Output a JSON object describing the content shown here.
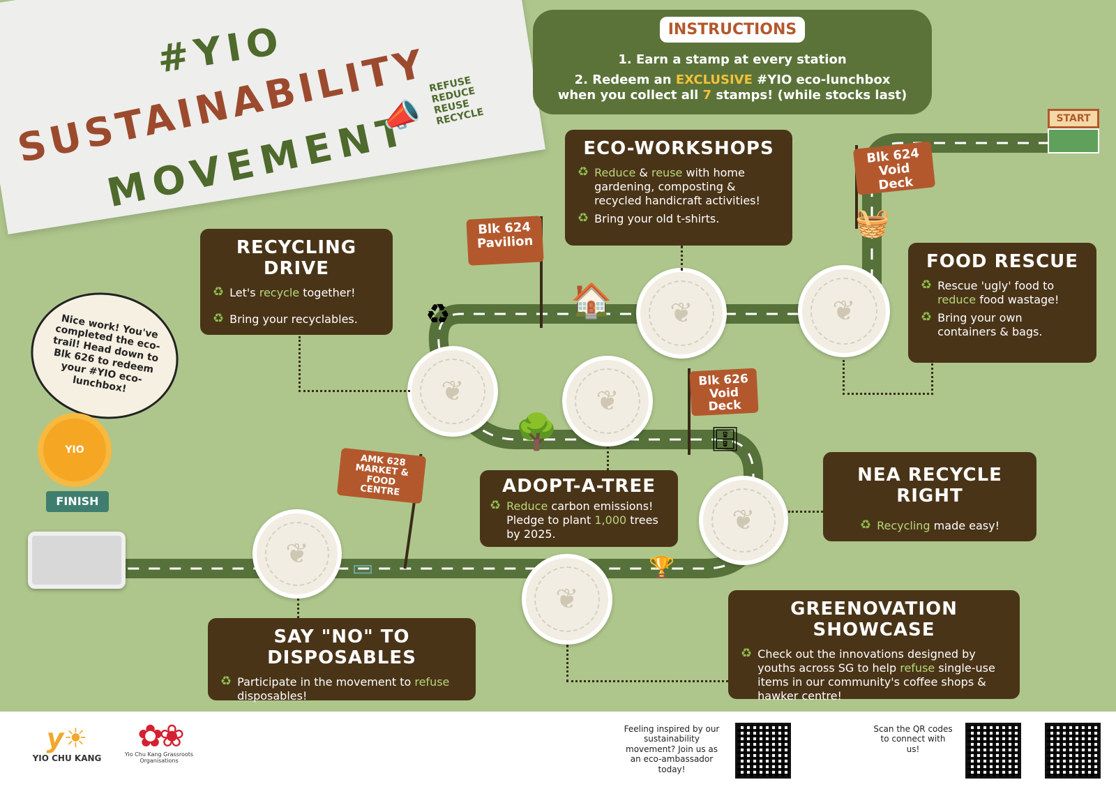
{
  "title": {
    "line1": "#YIO",
    "line2": "SUSTAINABILITY",
    "line3": "MOVEMENT",
    "rrr": [
      "REFUSE",
      "REDUCE",
      "REUSE",
      "RECYCLE"
    ]
  },
  "instructions": {
    "heading": "INSTRUCTIONS",
    "step1": "1. Earn a stamp at every station",
    "step2_a": "2. Redeem an ",
    "step2_b": "EXCLUSIVE",
    "step2_c": " #YIO eco-lunchbox",
    "step2_d": "when you collect all ",
    "step2_e": "7",
    "step2_f": " stamps! (while stocks last)"
  },
  "stations": {
    "eco_workshops": {
      "heading": "ECO-WORKSHOPS",
      "l1a": "Reduce",
      "l1b": " & ",
      "l1c": "reuse",
      "l1d": " with home gardening, composting & recycled handicraft activities!",
      "l2": "Bring your old t-shirts."
    },
    "recycling_drive": {
      "heading": "RECYCLING DRIVE",
      "l1a": "Let's ",
      "l1b": "recycle",
      "l1c": " together!",
      "l2": "Bring your recyclables."
    },
    "food_rescue": {
      "heading": "FOOD RESCUE",
      "l1a": "Rescue 'ugly' food to ",
      "l1b": "reduce",
      "l1c": " food wastage!",
      "l2": "Bring your own containers & bags."
    },
    "adopt_a_tree": {
      "heading": "ADOPT-A-TREE",
      "l1a": "Reduce",
      "l1b": " carbon emissions! Pledge to plant ",
      "l1c": "1,000",
      "l1d": " trees by 2025."
    },
    "nea": {
      "heading": "NEA RECYCLE RIGHT",
      "l1a": "Recycling",
      "l1b": " made easy!"
    },
    "disposables": {
      "heading": "SAY \"NO\" TO DISPOSABLES",
      "l1a": "Participate in the movement to ",
      "l1b": "refuse",
      "l1c": " disposables!"
    },
    "greenovation": {
      "heading": "GREENOVATION SHOWCASE",
      "l1a": "Check out the innovations designed by youths across SG to help ",
      "l1b": "refuse",
      "l1c": " single-use items in our community's coffee shops & hawker centre!"
    }
  },
  "flags": {
    "pavilion": "Blk 624 Pavilion",
    "void624": "Blk 624 Void Deck",
    "void626": "Blk 626 Void Deck",
    "amk628": "AMK 628 MARKET & FOOD CENTRE"
  },
  "bubble": "Nice work! You've completed the eco-trail! Head down to Blk 626 to redeem your #YIO eco-lunchbox!",
  "mascot_label": "YIO",
  "finish": "FINISH",
  "start": "START",
  "footer": {
    "yck": "YIO CHU KANG",
    "gro": "Yio Chu Kang Grassroots Organisations",
    "inspire": "Feeling inspired by our sustainability movement? Join us as an eco-ambassador today!",
    "scan": "Scan the QR codes to connect with us!"
  },
  "colors": {
    "background": "#aec68c",
    "box": "#4a3418",
    "road": "#56713a",
    "accent": "#b3582d",
    "highlight": "#b7d779"
  }
}
